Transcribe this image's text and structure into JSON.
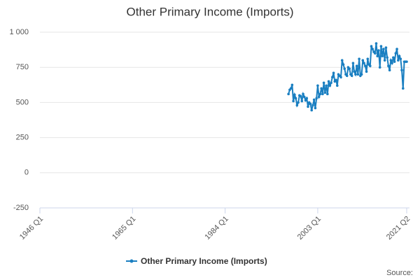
{
  "chart_data": {
    "type": "line",
    "title": "Other Primary Income (Imports)",
    "x": [
      1997,
      1997.25,
      1997.5,
      1997.75,
      1998,
      1998.25,
      1998.5,
      1998.75,
      1999,
      1999.25,
      1999.5,
      1999.75,
      2000,
      2000.25,
      2000.5,
      2000.75,
      2001,
      2001.25,
      2001.5,
      2001.75,
      2002,
      2002.25,
      2002.5,
      2002.75,
      2003,
      2003.25,
      2003.5,
      2003.75,
      2004,
      2004.25,
      2004.5,
      2004.75,
      2005,
      2005.25,
      2005.5,
      2005.75,
      2006,
      2006.25,
      2006.5,
      2006.75,
      2007,
      2007.25,
      2007.5,
      2007.75,
      2008,
      2008.25,
      2008.5,
      2008.75,
      2009,
      2009.25,
      2009.5,
      2009.75,
      2010,
      2010.25,
      2010.5,
      2010.75,
      2011,
      2011.25,
      2011.5,
      2011.75,
      2012,
      2012.25,
      2012.5,
      2012.75,
      2013,
      2013.25,
      2013.5,
      2013.75,
      2014,
      2014.25,
      2014.5,
      2014.75,
      2015,
      2015.25,
      2015.5,
      2015.75,
      2016,
      2016.25,
      2016.5,
      2016.75,
      2017,
      2017.25,
      2017.5,
      2017.75,
      2018,
      2018.25,
      2018.5,
      2018.75,
      2019,
      2019.25,
      2019.5,
      2019.75,
      2020,
      2020.25,
      2020.5,
      2020.75,
      2021,
      2021.25
    ],
    "series": [
      {
        "name": "Other Primary Income (Imports)",
        "color": "#1a7fc1",
        "values": [
          560,
          590,
          600,
          625,
          510,
          555,
          530,
          480,
          500,
          550,
          545,
          510,
          560,
          540,
          515,
          530,
          470,
          500,
          490,
          445,
          480,
          520,
          460,
          530,
          620,
          540,
          560,
          600,
          560,
          640,
          570,
          620,
          560,
          650,
          620,
          640,
          680,
          710,
          650,
          660,
          620,
          700,
          690,
          680,
          800,
          770,
          740,
          700,
          690,
          750,
          740,
          700,
          690,
          780,
          720,
          700,
          760,
          700,
          810,
          690,
          700,
          800,
          780,
          760,
          720,
          810,
          770,
          760,
          900,
          880,
          860,
          850,
          920,
          830,
          870,
          750,
          900,
          830,
          880,
          800,
          890,
          820,
          760,
          730,
          800,
          780,
          820,
          790,
          850,
          880,
          800,
          830,
          810,
          730,
          600,
          790,
          790,
          790
        ]
      }
    ],
    "xlim": [
      1946,
      2021.25
    ],
    "xticks": [
      {
        "value": 1946,
        "label": "1946 Q1"
      },
      {
        "value": 1965,
        "label": "1965 Q1"
      },
      {
        "value": 1984,
        "label": "1984 Q1"
      },
      {
        "value": 2003,
        "label": "2003 Q1"
      },
      {
        "value": 2021.25,
        "label": "2021 Q2"
      }
    ],
    "ylim": [
      -250,
      1000
    ],
    "yticks": [
      -250,
      0,
      250,
      500,
      750,
      {
        "value": 1000,
        "label": "1 000"
      }
    ],
    "grid": true,
    "source": "Source:"
  }
}
